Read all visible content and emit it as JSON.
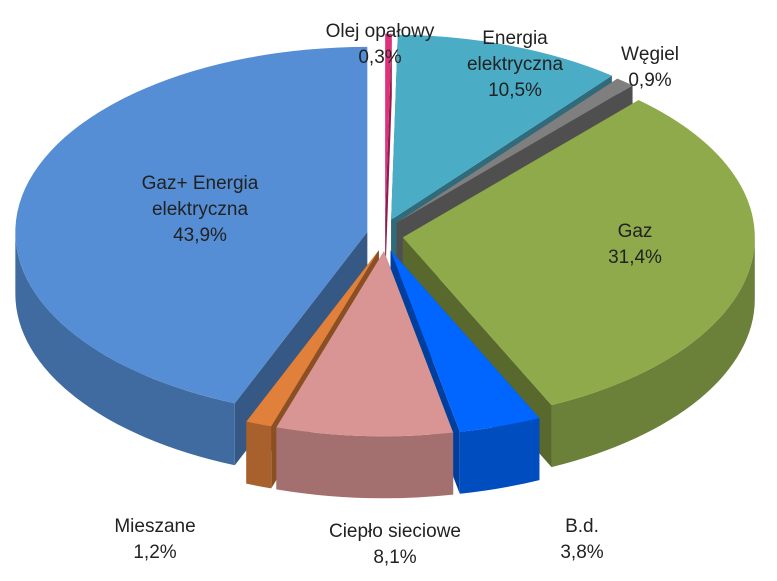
{
  "chart_data": {
    "type": "pie",
    "categories": [
      "Olej opałowy",
      "Energia elektryczna",
      "Węgiel",
      "Gaz",
      "B.d.",
      "Ciepło sieciowe",
      "Mieszane",
      "Gaz+ Energia elektryczna"
    ],
    "values": [
      0.3,
      10.5,
      0.9,
      31.4,
      3.8,
      8.1,
      1.2,
      43.9
    ],
    "value_labels": [
      "0,3%",
      "10,5%",
      "0,9%",
      "31,4%",
      "3,8%",
      "8,1%",
      "1,2%",
      "43,9%"
    ],
    "colors": [
      "#e0307a",
      "#4bacc6",
      "#7f7f7f",
      "#8faa4a",
      "#0066ff",
      "#d99594",
      "#e0803a",
      "#558ed5"
    ]
  }
}
